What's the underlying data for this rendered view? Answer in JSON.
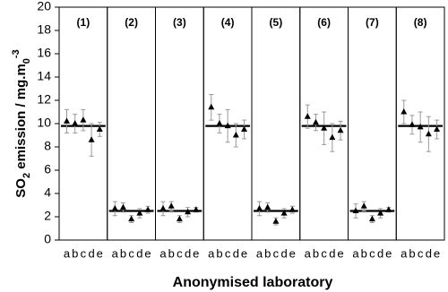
{
  "chart_data": {
    "type": "scatter",
    "ylabel": [
      "SO",
      "2",
      " emission / mg.m",
      "0",
      "-3"
    ],
    "xlabel": "Anonymised laboratory",
    "ylim": [
      0,
      20
    ],
    "yticks": [
      0,
      2,
      4,
      6,
      8,
      10,
      12,
      14,
      16,
      18,
      20
    ],
    "color": "#000000",
    "error_color": "#999999",
    "panels": [
      {
        "label": "(1)",
        "reference": 9.8,
        "categories": [
          "a",
          "b",
          "c",
          "d",
          "e"
        ],
        "values": [
          10.2,
          10.0,
          10.3,
          8.6,
          9.5
        ],
        "errors": [
          1.0,
          0.8,
          0.9,
          1.4,
          0.6
        ]
      },
      {
        "label": "(2)",
        "reference": 2.5,
        "categories": [
          "a",
          "b",
          "c",
          "d",
          "e"
        ],
        "values": [
          2.7,
          2.8,
          1.8,
          2.3,
          2.6
        ],
        "errors": [
          0.6,
          0.4,
          0.3,
          0.4,
          0.3
        ]
      },
      {
        "label": "(3)",
        "reference": 2.5,
        "categories": [
          "a",
          "b",
          "c",
          "d",
          "e"
        ],
        "values": [
          2.7,
          2.9,
          1.8,
          2.4,
          2.6
        ],
        "errors": [
          0.6,
          0.4,
          0.3,
          0.4,
          0.2
        ]
      },
      {
        "label": "(4)",
        "reference": 9.8,
        "categories": [
          "a",
          "b",
          "c",
          "d",
          "e"
        ],
        "values": [
          11.4,
          10.0,
          9.8,
          9.0,
          9.5
        ],
        "errors": [
          1.1,
          0.8,
          1.4,
          1.0,
          0.8
        ]
      },
      {
        "label": "(5)",
        "reference": 2.5,
        "categories": [
          "a",
          "b",
          "c",
          "d",
          "e"
        ],
        "values": [
          2.7,
          2.8,
          1.6,
          2.3,
          2.6
        ],
        "errors": [
          0.6,
          0.4,
          0.3,
          0.4,
          0.3
        ]
      },
      {
        "label": "(6)",
        "reference": 9.8,
        "categories": [
          "a",
          "b",
          "c",
          "d",
          "e"
        ],
        "values": [
          10.6,
          10.1,
          9.6,
          8.8,
          9.4
        ],
        "errors": [
          1.0,
          0.7,
          1.4,
          1.2,
          0.8
        ]
      },
      {
        "label": "(7)",
        "reference": 2.5,
        "categories": [
          "a",
          "b",
          "c",
          "d",
          "e"
        ],
        "values": [
          2.5,
          2.9,
          1.8,
          2.3,
          2.6
        ],
        "errors": [
          0.6,
          0.4,
          0.3,
          0.4,
          0.2
        ]
      },
      {
        "label": "(8)",
        "reference": 9.8,
        "categories": [
          "a",
          "b",
          "c",
          "d",
          "e"
        ],
        "values": [
          11.0,
          9.9,
          9.7,
          9.1,
          9.5
        ],
        "errors": [
          1.0,
          0.8,
          1.3,
          1.5,
          0.8
        ]
      }
    ]
  }
}
